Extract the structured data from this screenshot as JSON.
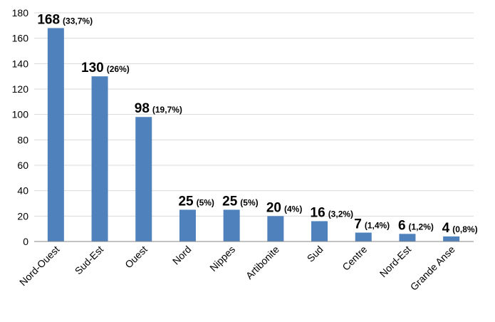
{
  "chart_data": {
    "type": "bar",
    "categories": [
      "Nord-Ouest",
      "Sud-Est",
      "Ouest",
      "Nord",
      "Nippes",
      "Artibonite",
      "Sud",
      "Centre",
      "Nord-Est",
      "Grande Anse"
    ],
    "values": [
      168,
      130,
      98,
      25,
      25,
      20,
      16,
      7,
      6,
      4
    ],
    "value_labels": [
      "168",
      "130",
      "98",
      "25",
      "25",
      "20",
      "16",
      "7",
      "6",
      "4"
    ],
    "percent_labels": [
      "(33,7%)",
      "(26%)",
      "(19,7%)",
      "(5%)",
      "(5%)",
      "(4%)",
      "(3,2%)",
      "(1,4%)",
      "(1,2%)",
      "(0,8%)"
    ],
    "ylim": [
      0,
      180
    ],
    "yticks": [
      0,
      20,
      40,
      60,
      80,
      100,
      120,
      140,
      160,
      180
    ],
    "title": "",
    "xlabel": "",
    "ylabel": "",
    "grid": true,
    "legend": "none",
    "bar_color": "#4F81BD",
    "grid_color": "#D9D9D9"
  }
}
